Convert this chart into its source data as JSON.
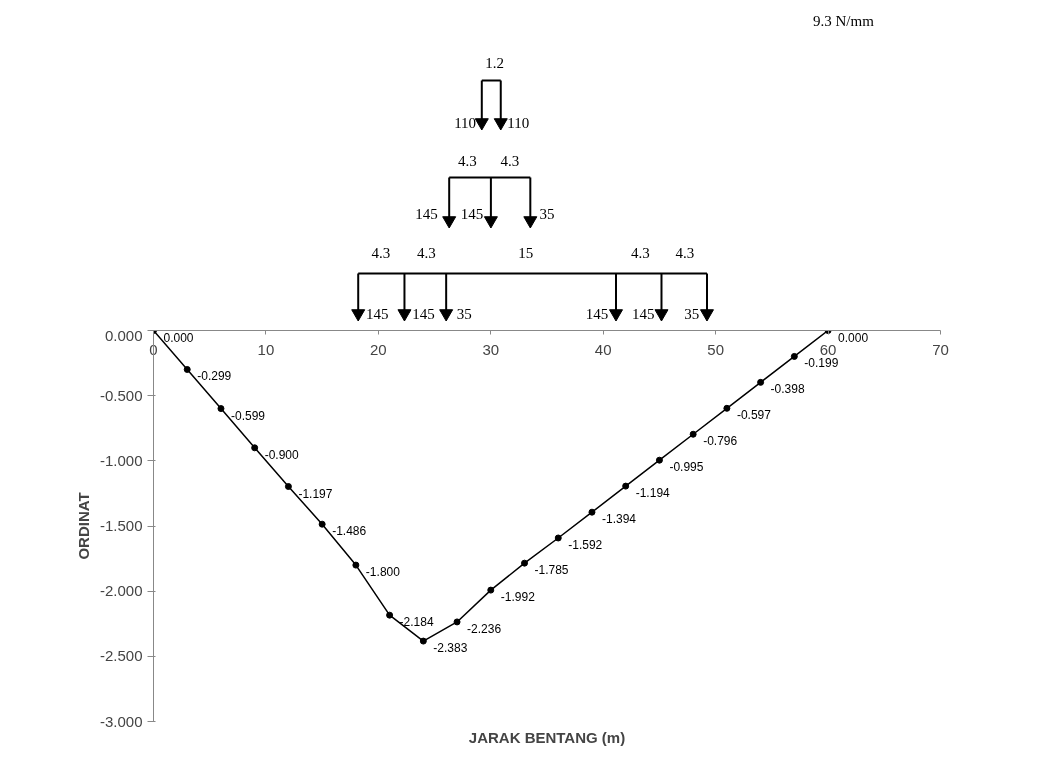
{
  "chart_data": {
    "type": "line",
    "xlabel": "JARAK BENTANG (m)",
    "ylabel": "ORDINAT",
    "x": [
      0,
      3,
      6,
      9,
      12,
      15,
      18,
      21,
      24,
      27,
      30,
      33,
      36,
      39,
      42,
      45,
      48,
      51,
      54,
      57,
      60
    ],
    "series": [
      {
        "color": "#000000",
        "values": [
          0,
          -0.299,
          -0.599,
          -0.9,
          -1.197,
          -1.486,
          -1.8,
          -2.184,
          -2.383,
          -2.236,
          -1.992,
          -1.785,
          -1.592,
          -1.394,
          -1.194,
          -0.995,
          -0.796,
          -0.597,
          -0.398,
          -0.199,
          0
        ],
        "value_labels": [
          "0.000",
          "-0.299",
          "-0.599",
          "-0.900",
          "-1.197",
          "-1.486",
          "-1.800",
          "-2.184",
          "-2.383",
          "-2.236",
          "-1.992",
          "-1.785",
          "-1.592",
          "-1.394",
          "-1.194",
          "-0.995",
          "-0.796",
          "-0.597",
          "-0.398",
          "-0.199",
          "0.000"
        ]
      }
    ],
    "xlim": [
      0,
      70
    ],
    "xticks": [
      0,
      10,
      20,
      30,
      40,
      50,
      60,
      70
    ],
    "ylim": [
      -3,
      0
    ],
    "yticks": [
      {
        "value": 0,
        "label": "0.000"
      },
      {
        "value": -0.5,
        "label": "-0.500"
      },
      {
        "value": -1,
        "label": "-1.000"
      },
      {
        "value": -1.5,
        "label": "-1.500"
      },
      {
        "value": -2,
        "label": "-2.000"
      },
      {
        "value": -2.5,
        "label": "-2.500"
      },
      {
        "value": -3,
        "label": "-3.000"
      }
    ],
    "marker": "circle",
    "line_style": "solid",
    "grid": false,
    "annotations": [
      "9.3 N/mm",
      "1.2",
      "110",
      "110",
      "4.3",
      "4.3",
      "145",
      "145",
      "35",
      "4.3",
      "4.3",
      "15",
      "4.3",
      "4.3",
      "145",
      "145",
      "35",
      "145",
      "145",
      "35"
    ]
  }
}
